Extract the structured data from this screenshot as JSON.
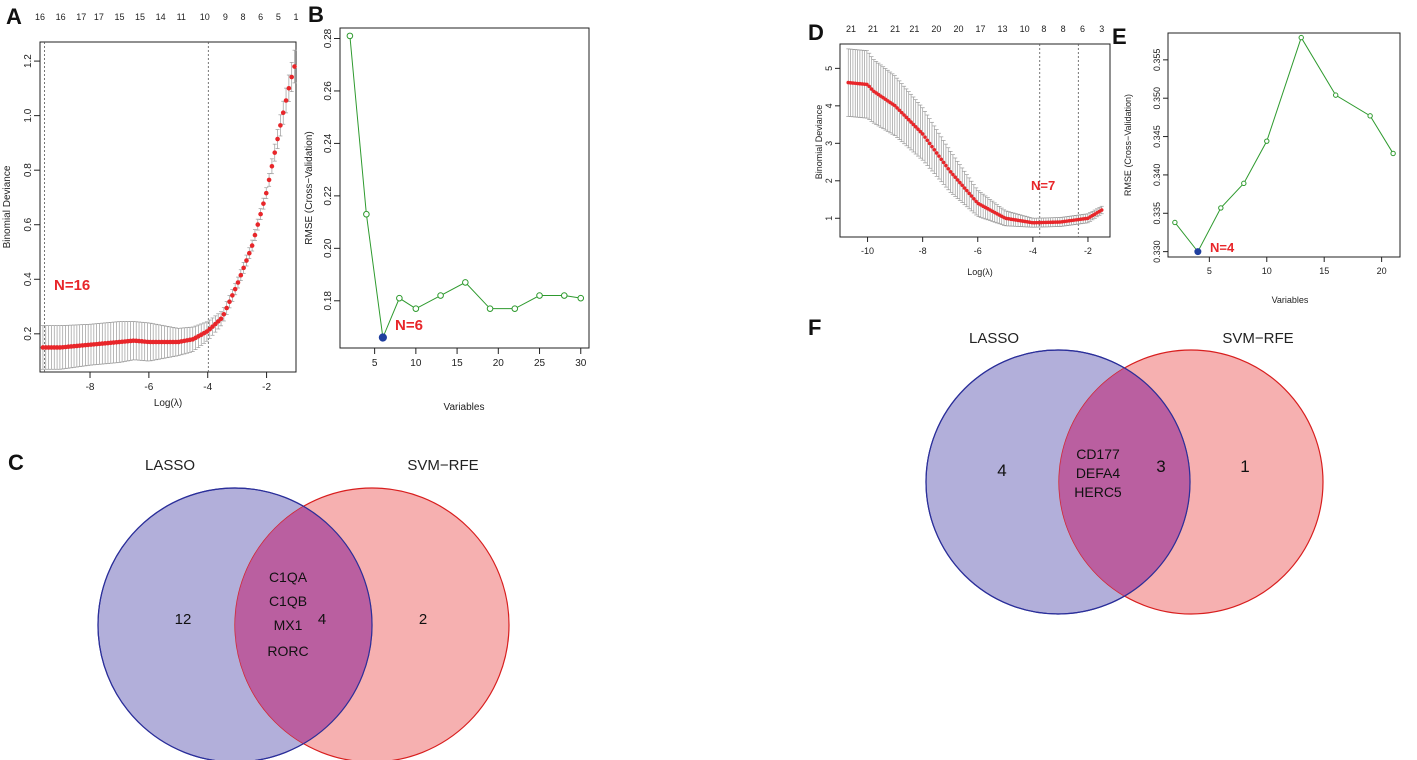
{
  "panels": {
    "A": "A",
    "B": "B",
    "C": "C",
    "D": "D",
    "E": "E",
    "F": "F"
  },
  "chart_data": [
    {
      "id": "A",
      "type": "line",
      "xlabel": "Log(λ)",
      "ylabel": "Binomial Deviance",
      "xlim": [
        -9.7,
        -1.0
      ],
      "ylim": [
        0.06,
        1.27
      ],
      "xticks": [
        "-8",
        "-6",
        "-4",
        "-2"
      ],
      "xtick_values": [
        -8,
        -6,
        -4,
        -2
      ],
      "yticks": [
        "0.2",
        "0.4",
        "0.6",
        "0.8",
        "1.0",
        "1.2"
      ],
      "ytick_values": [
        0.2,
        0.4,
        0.6,
        0.8,
        1.0,
        1.2
      ],
      "top_ticks": [
        "16",
        "16",
        "17",
        "17",
        "15",
        "15",
        "14",
        "11",
        "10",
        "9",
        "8",
        "6",
        "5",
        "1"
      ],
      "top_tick_values": [
        -9.7,
        -9.0,
        -8.3,
        -7.7,
        -7.0,
        -6.3,
        -5.6,
        -4.9,
        -4.1,
        -3.4,
        -2.8,
        -2.2,
        -1.6,
        -1.0
      ],
      "vlines": [
        -9.55,
        -3.98
      ],
      "series": [
        {
          "name": "cv_mean",
          "x": [
            -9.6,
            -9.0,
            -8.0,
            -7.0,
            -6.5,
            -6.0,
            -5.0,
            -4.5,
            -4.0,
            -3.5,
            -3.0,
            -2.5,
            -2.0,
            -1.5,
            -1.2,
            -1.05
          ],
          "y": [
            0.15,
            0.15,
            0.16,
            0.17,
            0.175,
            0.17,
            0.17,
            0.18,
            0.21,
            0.26,
            0.38,
            0.52,
            0.72,
            0.98,
            1.12,
            1.18
          ],
          "err": [
            0.08,
            0.08,
            0.075,
            0.075,
            0.07,
            0.07,
            0.05,
            0.045,
            0.035,
            0.025,
            0.02,
            0.02,
            0.02,
            0.04,
            0.05,
            0.06
          ]
        }
      ],
      "annotation": "N=16"
    },
    {
      "id": "B",
      "type": "line",
      "xlabel": "Variables",
      "ylabel": "RMSE (Cross−Validation)",
      "xlim": [
        0.8,
        31
      ],
      "ylim": [
        0.162,
        0.284
      ],
      "xticks": [
        "5",
        "10",
        "15",
        "20",
        "25",
        "30"
      ],
      "xtick_values": [
        5,
        10,
        15,
        20,
        25,
        30
      ],
      "yticks": [
        "0.18",
        "0.20",
        "0.22",
        "0.24",
        "0.26",
        "0.28"
      ],
      "ytick_values": [
        0.18,
        0.2,
        0.22,
        0.24,
        0.26,
        0.28
      ],
      "series": [
        {
          "name": "rmse",
          "x": [
            2,
            4,
            6,
            8,
            10,
            13,
            16,
            19,
            22,
            25,
            28,
            30
          ],
          "y": [
            0.281,
            0.213,
            0.166,
            0.181,
            0.177,
            0.182,
            0.187,
            0.177,
            0.177,
            0.182,
            0.182,
            0.181
          ]
        }
      ],
      "best": {
        "x": 6,
        "y": 0.166
      },
      "annotation": "N=6"
    },
    {
      "id": "D",
      "type": "line",
      "xlabel": "Log(λ)",
      "ylabel": "Binomial Deviance",
      "xlim": [
        -11.0,
        -1.2
      ],
      "ylim": [
        0.5,
        5.65
      ],
      "xticks": [
        "-10",
        "-8",
        "-6",
        "-4",
        "-2"
      ],
      "xtick_values": [
        -10,
        -8,
        -6,
        -4,
        -2
      ],
      "yticks": [
        "1",
        "2",
        "3",
        "4",
        "5"
      ],
      "ytick_values": [
        1,
        2,
        3,
        4,
        5
      ],
      "top_ticks": [
        "21",
        "21",
        "21",
        "21",
        "20",
        "20",
        "17",
        "13",
        "10",
        "8",
        "8",
        "6",
        "3"
      ],
      "top_tick_values": [
        -10.6,
        -9.8,
        -9.0,
        -8.3,
        -7.5,
        -6.7,
        -5.9,
        -5.1,
        -4.3,
        -3.6,
        -2.9,
        -2.2,
        -1.5
      ],
      "vlines": [
        -3.75,
        -2.35
      ],
      "series": [
        {
          "name": "cv_mean",
          "x": [
            -10.7,
            -10.0,
            -9.8,
            -9.0,
            -8.0,
            -7.0,
            -6.0,
            -5.0,
            -4.0,
            -3.0,
            -2.0,
            -1.5
          ],
          "y": [
            4.62,
            4.57,
            4.4,
            4.0,
            3.25,
            2.25,
            1.4,
            1.0,
            0.88,
            0.9,
            1.0,
            1.22
          ],
          "err": [
            0.9,
            0.9,
            0.85,
            0.8,
            0.7,
            0.55,
            0.35,
            0.2,
            0.12,
            0.12,
            0.12,
            0.1
          ]
        }
      ],
      "annotation": "N=7"
    },
    {
      "id": "E",
      "type": "line",
      "xlabel": "Variables",
      "ylabel": "RMSE (Cross−Validation)",
      "xlim": [
        1.4,
        21.6
      ],
      "ylim": [
        0.3293,
        0.3585
      ],
      "xticks": [
        "5",
        "10",
        "15",
        "20"
      ],
      "xtick_values": [
        5,
        10,
        15,
        20
      ],
      "yticks": [
        "0.330",
        "0.335",
        "0.340",
        "0.345",
        "0.350",
        "0.355"
      ],
      "ytick_values": [
        0.33,
        0.335,
        0.34,
        0.345,
        0.35,
        0.355
      ],
      "series": [
        {
          "name": "rmse",
          "x": [
            2,
            4,
            6,
            8,
            10,
            13,
            16,
            19,
            21
          ],
          "y": [
            0.3338,
            0.33,
            0.3357,
            0.3389,
            0.3444,
            0.3579,
            0.3504,
            0.3477,
            0.3428
          ]
        }
      ],
      "best": {
        "x": 4,
        "y": 0.33
      },
      "annotation": "N=4"
    }
  ],
  "venn_C": {
    "left_label": "LASSO",
    "right_label": "SVM−RFE",
    "left_count": "12",
    "overlap_count": "4",
    "right_count": "2",
    "genes": [
      "C1QA",
      "C1QB",
      "MX1",
      "RORC"
    ],
    "left_color": "#7b76c0",
    "right_color": "#ef6f6f"
  },
  "venn_F": {
    "left_label": "LASSO",
    "right_label": "SVM−RFE",
    "left_count": "4",
    "overlap_count": "3",
    "right_count": "1",
    "genes": [
      "CD177",
      "DEFA4",
      "HERC5"
    ],
    "left_color": "#7b76c0",
    "right_color": "#ef6f6f"
  },
  "colors": {
    "point_red": "#e8262a",
    "line_green": "#2e9a2e",
    "best_blue": "#1f3f9e",
    "err_grey": "#9a9a9a"
  }
}
